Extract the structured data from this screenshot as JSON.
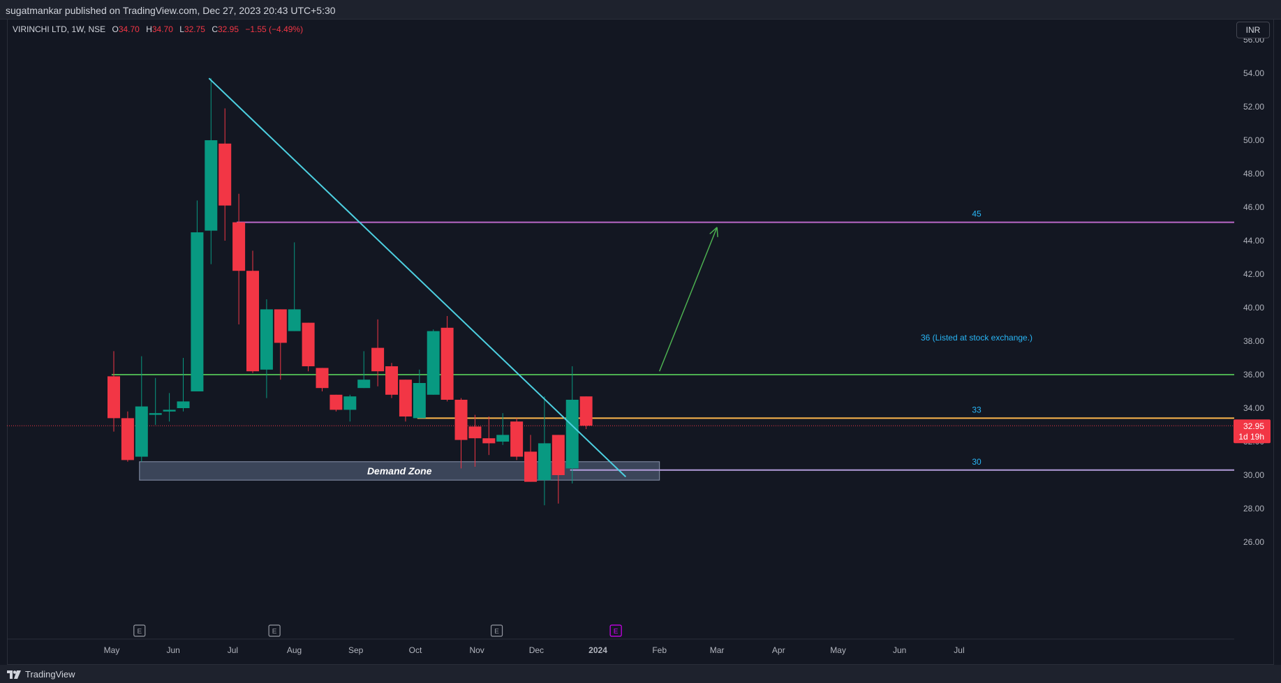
{
  "header": {
    "publisher_line": "sugatmankar published on TradingView.com, Dec 27, 2023 20:43 UTC+5:30"
  },
  "legend": {
    "symbol": "VIRINCHI LTD, 1W, NSE",
    "open_label": "O",
    "open": "34.70",
    "high_label": "H",
    "high": "34.70",
    "low_label": "L",
    "low": "32.75",
    "close_label": "C",
    "close": "32.95",
    "change": "−1.55 (−4.49%)"
  },
  "toolbar": {
    "currency": "INR"
  },
  "footer": {
    "brand": "TradingView"
  },
  "colors": {
    "up": "#089981",
    "down": "#f23645",
    "trendline": "#4dd0e1",
    "level_45": "#ba68c8",
    "level_36": "#4caf50",
    "level_33": "#ffb74d",
    "level_30": "#b39ddb",
    "arrow": "#4caf50",
    "demand_zone": "#5d6b87",
    "earnings_main": "#9598a1",
    "earnings_next": "#d500f9"
  },
  "chart_data": {
    "type": "candlestick",
    "instrument": "VIRINCHI LTD",
    "timeframe": "1W",
    "exchange": "NSE",
    "currency": "INR",
    "ylim": [
      26,
      56
    ],
    "y_ticks": [
      "56.00",
      "54.00",
      "52.00",
      "50.00",
      "48.00",
      "46.00",
      "44.00",
      "42.00",
      "40.00",
      "38.00",
      "36.00",
      "34.00",
      "32.00",
      "30.00",
      "28.00",
      "26.00"
    ],
    "x_ticks": [
      {
        "label": "May",
        "date": "2023-05-01"
      },
      {
        "label": "Jun",
        "date": "2023-06-01"
      },
      {
        "label": "Jul",
        "date": "2023-07-01"
      },
      {
        "label": "Aug",
        "date": "2023-08-01"
      },
      {
        "label": "Sep",
        "date": "2023-09-01"
      },
      {
        "label": "Oct",
        "date": "2023-10-01"
      },
      {
        "label": "Nov",
        "date": "2023-11-01"
      },
      {
        "label": "Dec",
        "date": "2023-12-01"
      },
      {
        "label": "2024",
        "date": "2024-01-01",
        "bold": true
      },
      {
        "label": "Feb",
        "date": "2024-02-01"
      },
      {
        "label": "Mar",
        "date": "2024-03-01"
      },
      {
        "label": "Apr",
        "date": "2024-04-01"
      },
      {
        "label": "May",
        "date": "2024-05-01"
      },
      {
        "label": "Jun",
        "date": "2024-06-01"
      },
      {
        "label": "Jul",
        "date": "2024-07-01"
      }
    ],
    "candles": [
      {
        "date": "2023-05-01",
        "o": 35.9,
        "h": 37.4,
        "l": 32.6,
        "c": 33.4
      },
      {
        "date": "2023-05-08",
        "o": 33.4,
        "h": 33.8,
        "l": 30.8,
        "c": 30.9
      },
      {
        "date": "2023-05-15",
        "o": 31.1,
        "h": 37.1,
        "l": 30.8,
        "c": 34.1
      },
      {
        "date": "2023-05-22",
        "o": 33.6,
        "h": 35.8,
        "l": 33.0,
        "c": 33.7
      },
      {
        "date": "2023-05-29",
        "o": 33.8,
        "h": 34.9,
        "l": 33.2,
        "c": 33.9
      },
      {
        "date": "2023-06-05",
        "o": 34.0,
        "h": 37.0,
        "l": 33.8,
        "c": 34.4
      },
      {
        "date": "2023-06-12",
        "o": 35.0,
        "h": 46.4,
        "l": 35.0,
        "c": 44.5
      },
      {
        "date": "2023-06-19",
        "o": 44.6,
        "h": 53.7,
        "l": 42.6,
        "c": 50.0
      },
      {
        "date": "2023-06-26",
        "o": 49.8,
        "h": 51.9,
        "l": 44.0,
        "c": 46.1
      },
      {
        "date": "2023-07-03",
        "o": 45.1,
        "h": 46.8,
        "l": 39.0,
        "c": 42.2
      },
      {
        "date": "2023-07-10",
        "o": 42.2,
        "h": 43.4,
        "l": 36.1,
        "c": 36.2
      },
      {
        "date": "2023-07-17",
        "o": 36.3,
        "h": 40.5,
        "l": 34.6,
        "c": 39.9
      },
      {
        "date": "2023-07-24",
        "o": 39.9,
        "h": 39.9,
        "l": 35.7,
        "c": 37.9
      },
      {
        "date": "2023-07-31",
        "o": 38.6,
        "h": 43.9,
        "l": 38.6,
        "c": 39.9
      },
      {
        "date": "2023-08-07",
        "o": 39.1,
        "h": 39.1,
        "l": 36.2,
        "c": 36.5
      },
      {
        "date": "2023-08-14",
        "o": 36.4,
        "h": 36.4,
        "l": 35.0,
        "c": 35.2
      },
      {
        "date": "2023-08-21",
        "o": 34.8,
        "h": 34.8,
        "l": 33.8,
        "c": 33.9
      },
      {
        "date": "2023-08-28",
        "o": 33.9,
        "h": 34.8,
        "l": 33.2,
        "c": 34.7
      },
      {
        "date": "2023-09-04",
        "o": 35.2,
        "h": 37.4,
        "l": 35.2,
        "c": 35.7
      },
      {
        "date": "2023-09-11",
        "o": 37.6,
        "h": 39.3,
        "l": 35.3,
        "c": 36.2
      },
      {
        "date": "2023-09-18",
        "o": 36.5,
        "h": 36.7,
        "l": 34.6,
        "c": 34.8
      },
      {
        "date": "2023-09-25",
        "o": 35.7,
        "h": 35.7,
        "l": 33.2,
        "c": 33.5
      },
      {
        "date": "2023-10-02",
        "o": 33.4,
        "h": 36.3,
        "l": 33.4,
        "c": 35.5
      },
      {
        "date": "2023-10-09",
        "o": 34.8,
        "h": 38.7,
        "l": 34.8,
        "c": 38.6
      },
      {
        "date": "2023-10-16",
        "o": 38.8,
        "h": 39.5,
        "l": 34.4,
        "c": 34.5
      },
      {
        "date": "2023-10-23",
        "o": 34.5,
        "h": 34.6,
        "l": 30.4,
        "c": 32.1
      },
      {
        "date": "2023-10-30",
        "o": 32.9,
        "h": 33.6,
        "l": 30.5,
        "c": 32.2
      },
      {
        "date": "2023-11-06",
        "o": 32.2,
        "h": 33.5,
        "l": 31.2,
        "c": 31.9
      },
      {
        "date": "2023-11-13",
        "o": 32.0,
        "h": 33.7,
        "l": 31.8,
        "c": 32.4
      },
      {
        "date": "2023-11-20",
        "o": 33.2,
        "h": 33.4,
        "l": 30.9,
        "c": 31.1
      },
      {
        "date": "2023-11-27",
        "o": 31.4,
        "h": 32.4,
        "l": 29.6,
        "c": 29.6
      },
      {
        "date": "2023-12-04",
        "o": 29.7,
        "h": 34.7,
        "l": 28.2,
        "c": 31.9
      },
      {
        "date": "2023-12-11",
        "o": 32.4,
        "h": 32.4,
        "l": 28.3,
        "c": 30.0
      },
      {
        "date": "2023-12-18",
        "o": 30.4,
        "h": 36.5,
        "l": 29.5,
        "c": 34.5
      },
      {
        "date": "2023-12-25",
        "o": 34.7,
        "h": 34.7,
        "l": 32.75,
        "c": 32.95
      }
    ],
    "current_price": {
      "value": "32.95",
      "countdown": "1d 19h"
    },
    "horizontal_levels": [
      {
        "label": "45",
        "value": 45.1,
        "from": "2023-07-03",
        "to": "2024-07-29",
        "color": "#ba68c8"
      },
      {
        "label": "36  (Listed at stock exchange.)",
        "value": 36.0,
        "from": "2023-05-01",
        "to": "2024-07-29",
        "color": "#4caf50",
        "label_value": 38.2
      },
      {
        "label": "33",
        "value": 33.4,
        "from": "2023-10-02",
        "to": "2024-07-29",
        "color": "#ffb74d"
      },
      {
        "label": "30",
        "value": 30.3,
        "from": "2023-12-18",
        "to": "2024-07-29",
        "color": "#b39ddb"
      }
    ],
    "trendline": {
      "from": {
        "date": "2023-06-19",
        "value": 53.7
      },
      "to": {
        "date": "2024-01-15",
        "value": 29.9
      }
    },
    "arrow": {
      "from": {
        "date": "2024-02-01",
        "value": 36.2
      },
      "to": {
        "date": "2024-03-01",
        "value": 44.8
      }
    },
    "demand_zone": {
      "label": "Demand Zone",
      "from": "2023-05-15",
      "to": "2024-02-01",
      "top": 30.8,
      "bottom": 29.7
    },
    "earnings_markers": [
      {
        "label": "E",
        "date": "2023-05-15"
      },
      {
        "label": "E",
        "date": "2023-07-22"
      },
      {
        "label": "E",
        "date": "2023-11-11"
      },
      {
        "label": "E",
        "date": "2024-01-10",
        "upcoming": true
      }
    ]
  }
}
